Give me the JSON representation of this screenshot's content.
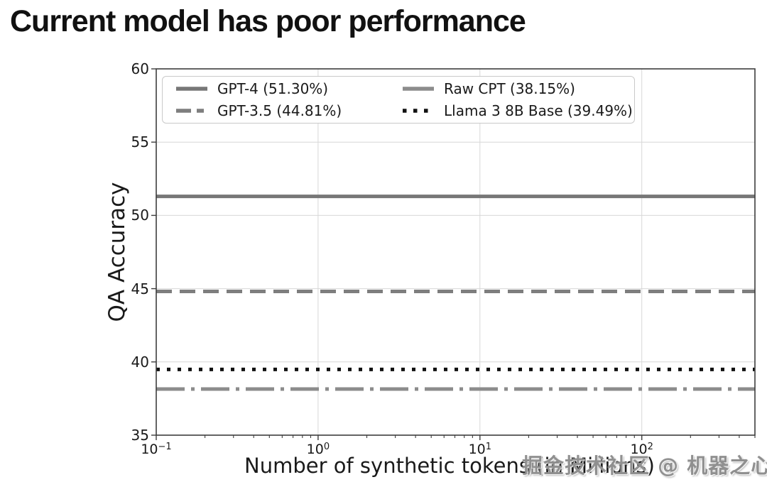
{
  "page": {
    "title": "Current model has poor performance",
    "watermark": "掘金技术社区 @ 机器之心"
  },
  "chart_data": {
    "type": "line",
    "title": "Current model has poor performance",
    "xlabel": "Number of synthetic tokens (in Millions)",
    "ylabel": "QA Accuracy",
    "xscale": "log",
    "xlim": [
      0.1,
      500
    ],
    "ylim": [
      35,
      60
    ],
    "yticks": [
      35,
      40,
      45,
      50,
      55,
      60
    ],
    "xticks": [
      0.1,
      1,
      10,
      100
    ],
    "xtick_labels": [
      {
        "base": "10",
        "exp": "−1"
      },
      {
        "base": "10",
        "exp": "0"
      },
      {
        "base": "10",
        "exp": "1"
      },
      {
        "base": "10",
        "exp": "2"
      }
    ],
    "grid": true,
    "legend_position": "upper left",
    "legend_columns": 2,
    "series": [
      {
        "name": "GPT-4 (51.30%)",
        "value": 51.3,
        "style": "solid",
        "color": "#777777",
        "legend_marker": "solid"
      },
      {
        "name": "GPT-3.5 (44.81%)",
        "value": 44.81,
        "style": "dashed",
        "color": "#7e7e7e",
        "legend_marker": "dashed"
      },
      {
        "name": "Raw CPT (38.15%)",
        "value": 38.15,
        "style": "dashdot",
        "color": "#8c8c8c",
        "legend_marker": "solid"
      },
      {
        "name": "Llama 3 8B Base (39.49%)",
        "value": 39.49,
        "style": "dotted",
        "color": "#111111",
        "legend_marker": "dotted"
      }
    ],
    "colors": {
      "grid": "#d7d7d7",
      "spine": "#3d3d3d",
      "tick": "#3d3d3d",
      "text": "#1a1a1a"
    }
  }
}
